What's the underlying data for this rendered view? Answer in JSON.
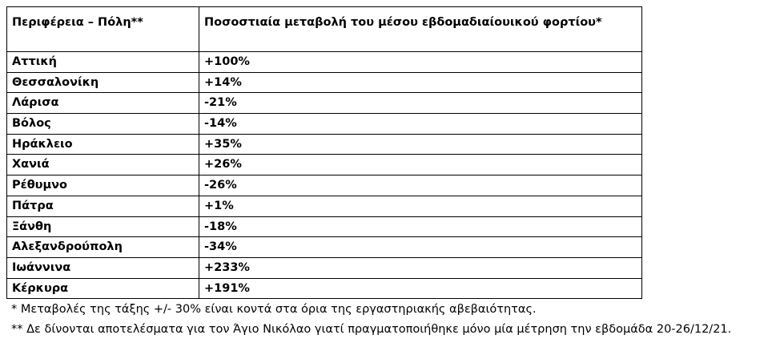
{
  "table": {
    "header": [
      "Περιφέρεια – Πόλη**",
      "Ποσοστιαία μεταβολή του μέσου εβδομαδιαίουικού φορτίου*"
    ],
    "rows": [
      [
        "Αττική",
        "+100%"
      ],
      [
        "Θεσσαλονίκη",
        "+14%"
      ],
      [
        "Λάρισα",
        "-21%"
      ],
      [
        "Βόλος",
        "-14%"
      ],
      [
        "Ηράκλειο",
        "+35%"
      ],
      [
        "Χανιά",
        "+26%"
      ],
      [
        "Ρέθυμνο",
        "-26%"
      ],
      [
        "Πάτρα",
        "+1%"
      ],
      [
        "Ξάνθη",
        "-18%"
      ],
      [
        "Αλεξανδρούπολη",
        "-34%"
      ],
      [
        "Ιωάννινα",
        "+233%"
      ],
      [
        "Κέρκυρα",
        "+191%"
      ]
    ]
  },
  "footnotes": [
    "* Μεταβολές της τάξης +/- 30% είναι κοντά στα όρια της εργαστηριακής αβεβαιότητας.",
    "** Δε δίνονται αποτελέσματα για τον Άγιο Νικόλαο γιατί πραγματοποιήθηκε μόνο μία μέτρηση την εβδομάδα 20-26/12/21."
  ]
}
